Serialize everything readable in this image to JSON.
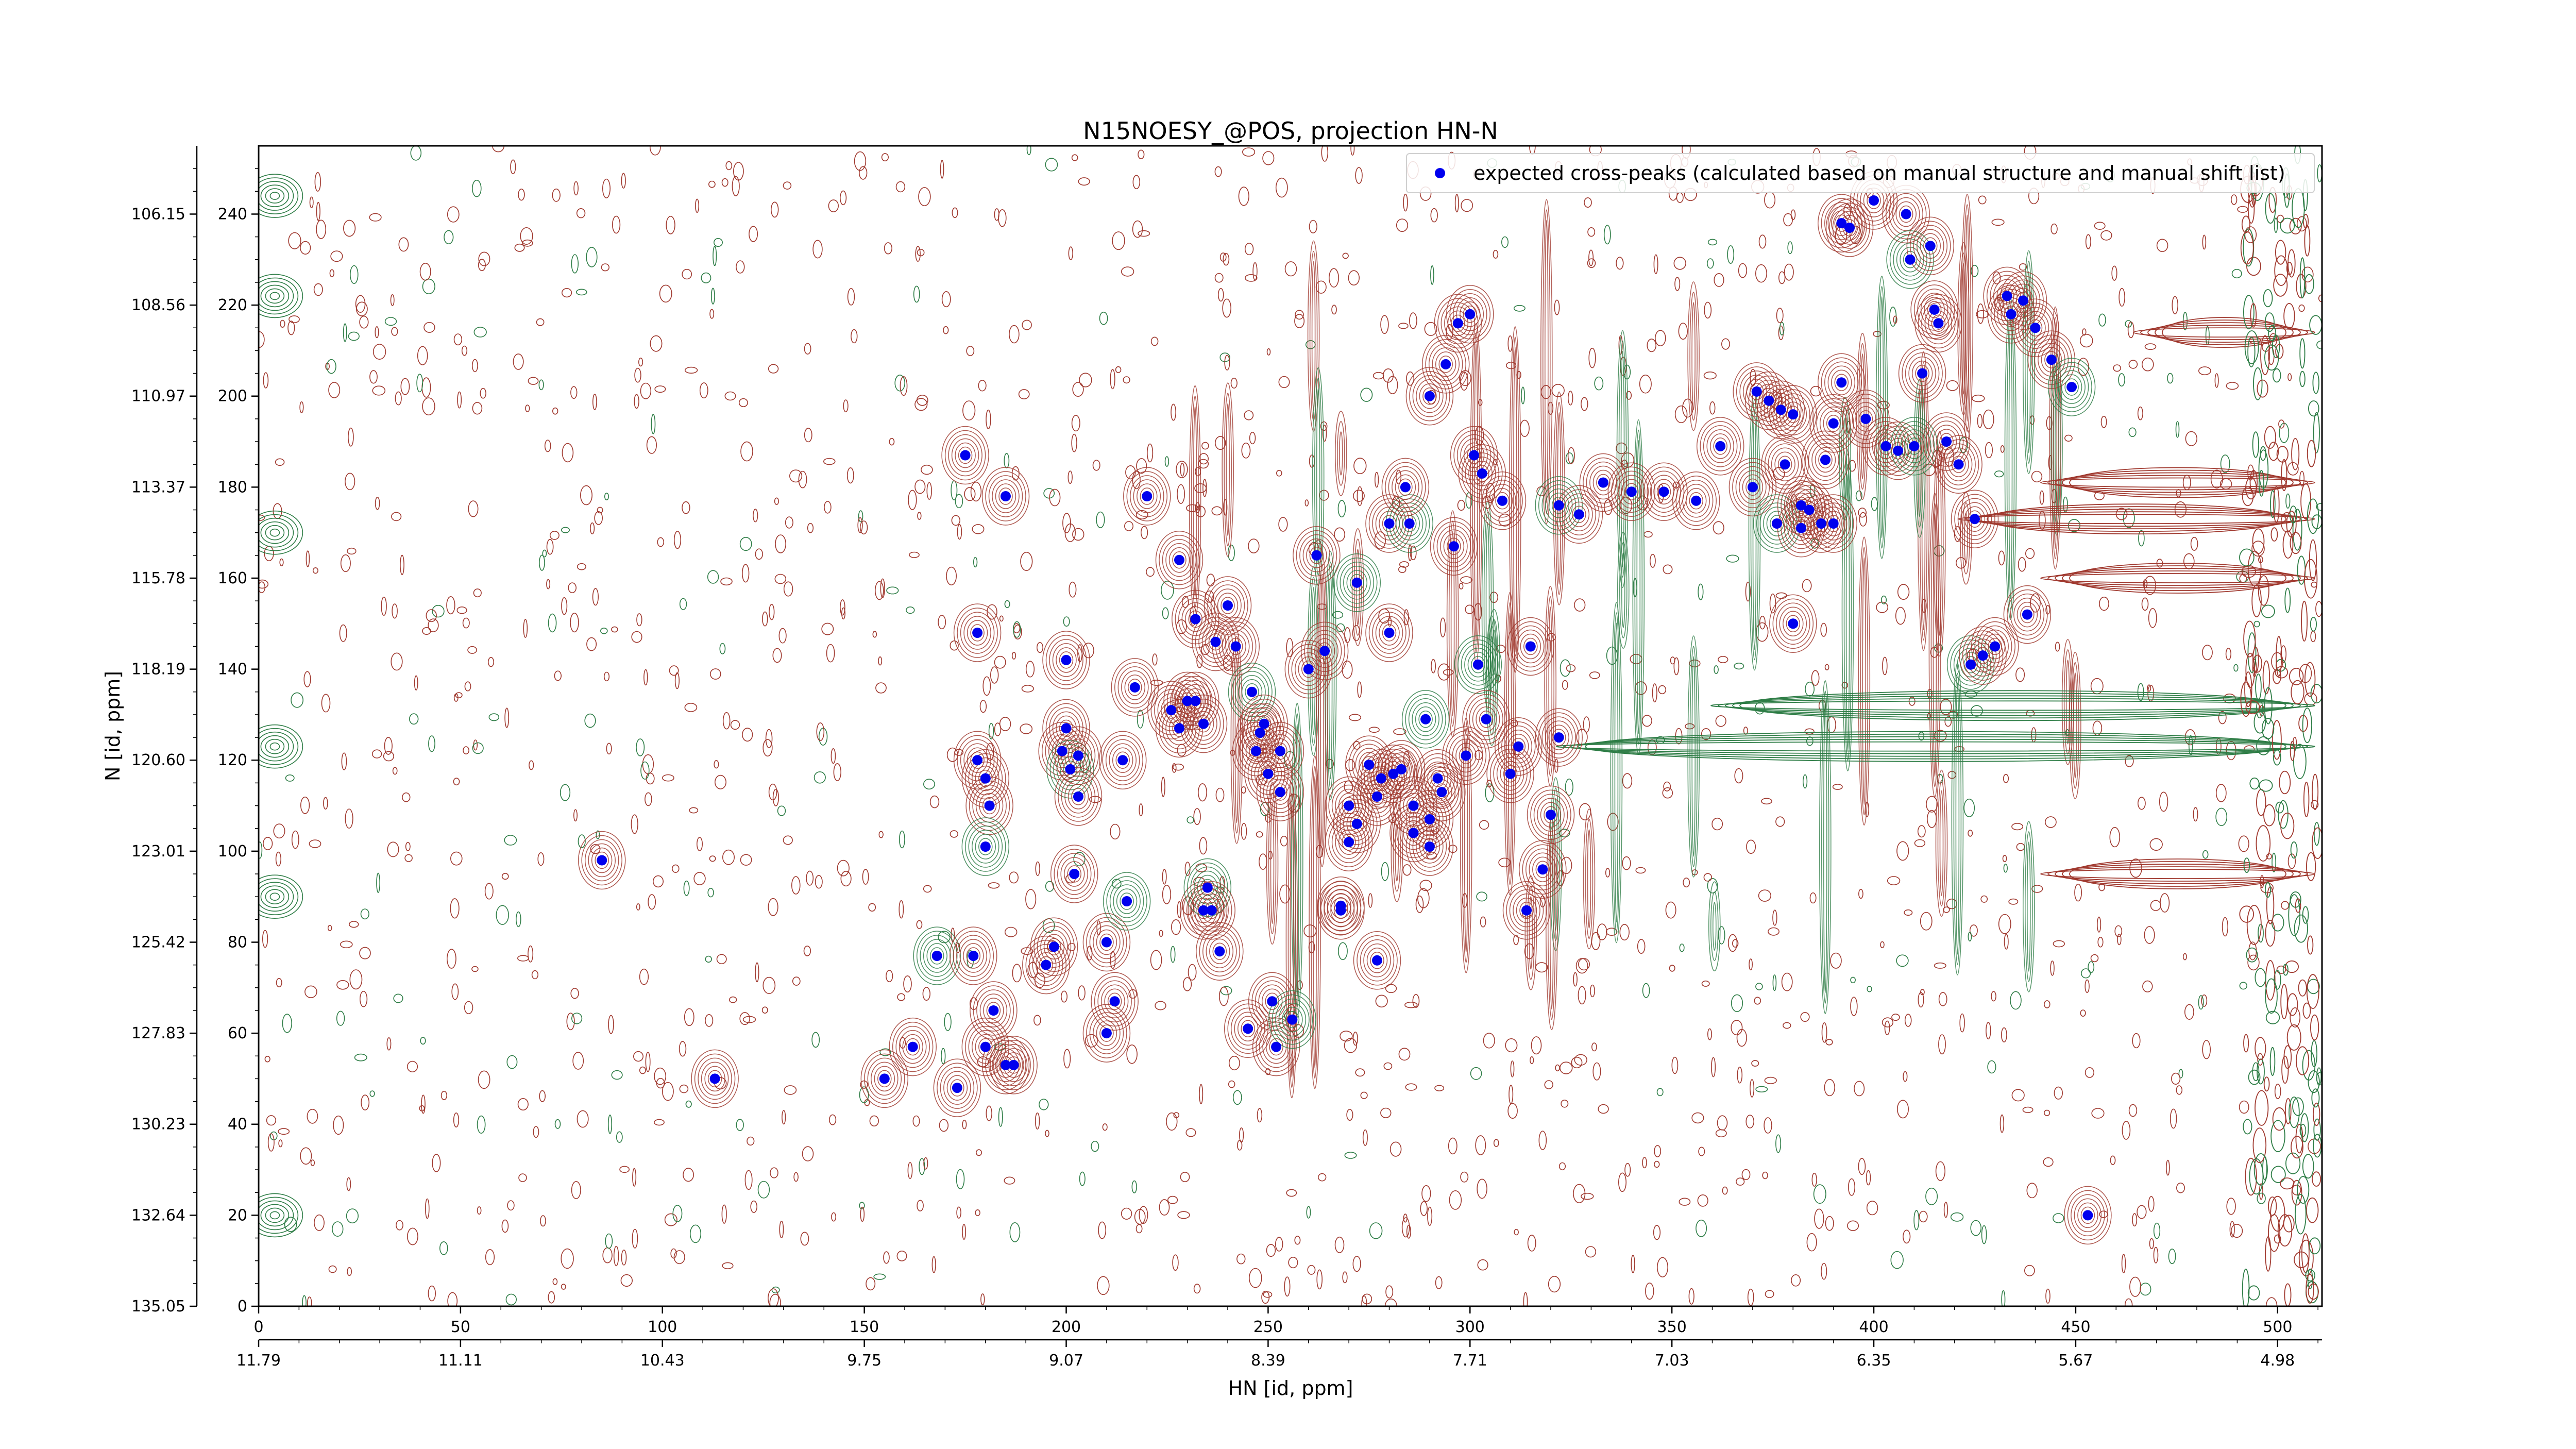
{
  "chart_data": {
    "type": "scatter",
    "title": "N15NOESY_@POS, projection HN-N",
    "xlabel": "HN [id, ppm]",
    "ylabel": "N [id, ppm]",
    "xlim": [
      0,
      511
    ],
    "ylim": [
      0,
      255
    ],
    "x_ticks_index": [
      "0",
      "50",
      "100",
      "150",
      "200",
      "250",
      "300",
      "350",
      "400",
      "450",
      "500"
    ],
    "x_ticks_ppm": [
      "11.79",
      "11.11",
      "10.43",
      "9.75",
      "9.07",
      "8.39",
      "7.71",
      "7.03",
      "6.35",
      "5.67",
      "4.98"
    ],
    "y_ticks_index": [
      "0",
      "20",
      "40",
      "60",
      "80",
      "100",
      "120",
      "140",
      "160",
      "180",
      "200",
      "220",
      "240"
    ],
    "y_ticks_ppm": [
      "135.05",
      "132.64",
      "130.23",
      "127.83",
      "125.42",
      "123.01",
      "120.60",
      "118.19",
      "115.78",
      "113.37",
      "110.97",
      "108.56",
      "106.15"
    ],
    "grid": false,
    "legend": "top-right",
    "colors": {
      "positive_contours": "#a0392f",
      "negative_contours": "#2e7d46",
      "peaks": "#0000ee"
    },
    "series": [
      {
        "name": "expected cross-peaks (calculated based on manual structure and manual shift list)",
        "points": [
          [
            85,
            98
          ],
          [
            113,
            50
          ],
          [
            155,
            50
          ],
          [
            162,
            57
          ],
          [
            168,
            77
          ],
          [
            173,
            48
          ],
          [
            177,
            77
          ],
          [
            180,
            57
          ],
          [
            182,
            65
          ],
          [
            185,
            53
          ],
          [
            178,
            120
          ],
          [
            180,
            116
          ],
          [
            181,
            110
          ],
          [
            180,
            101
          ],
          [
            175,
            187
          ],
          [
            178,
            148
          ],
          [
            185,
            178
          ],
          [
            187,
            53
          ],
          [
            195,
            75
          ],
          [
            197,
            79
          ],
          [
            199,
            122
          ],
          [
            200,
            127
          ],
          [
            201,
            118
          ],
          [
            203,
            112
          ],
          [
            200,
            142
          ],
          [
            203,
            121
          ],
          [
            202,
            95
          ],
          [
            210,
            60
          ],
          [
            210,
            80
          ],
          [
            212,
            67
          ],
          [
            214,
            120
          ],
          [
            215,
            89
          ],
          [
            217,
            136
          ],
          [
            220,
            178
          ],
          [
            226,
            131
          ],
          [
            228,
            127
          ],
          [
            230,
            133
          ],
          [
            232,
            133
          ],
          [
            234,
            128
          ],
          [
            234,
            87
          ],
          [
            235,
            92
          ],
          [
            236,
            87
          ],
          [
            238,
            78
          ],
          [
            237,
            146
          ],
          [
            228,
            164
          ],
          [
            232,
            151
          ],
          [
            240,
            154
          ],
          [
            242,
            145
          ],
          [
            245,
            61
          ],
          [
            246,
            135
          ],
          [
            247,
            122
          ],
          [
            248,
            126
          ],
          [
            249,
            128
          ],
          [
            250,
            117
          ],
          [
            253,
            122
          ],
          [
            253,
            113
          ],
          [
            251,
            67
          ],
          [
            252,
            57
          ],
          [
            256,
            63
          ],
          [
            260,
            140
          ],
          [
            262,
            165
          ],
          [
            264,
            144
          ],
          [
            268,
            87
          ],
          [
            268,
            88
          ],
          [
            270,
            110
          ],
          [
            270,
            102
          ],
          [
            272,
            106
          ],
          [
            272,
            159
          ],
          [
            275,
            119
          ],
          [
            277,
            76
          ],
          [
            277,
            112
          ],
          [
            278,
            116
          ],
          [
            280,
            148
          ],
          [
            281,
            117
          ],
          [
            283,
            118
          ],
          [
            286,
            104
          ],
          [
            289,
            129
          ],
          [
            290,
            101
          ],
          [
            292,
            116
          ],
          [
            293,
            113
          ],
          [
            296,
            167
          ],
          [
            299,
            121
          ],
          [
            301,
            187
          ],
          [
            308,
            177
          ],
          [
            280,
            172
          ],
          [
            285,
            172
          ],
          [
            284,
            180
          ],
          [
            286,
            110
          ],
          [
            290,
            107
          ],
          [
            294,
            207
          ],
          [
            290,
            200
          ],
          [
            297,
            216
          ],
          [
            300,
            218
          ],
          [
            303,
            183
          ],
          [
            302,
            141
          ],
          [
            304,
            129
          ],
          [
            312,
            123
          ],
          [
            314,
            87
          ],
          [
            318,
            96
          ],
          [
            322,
            125
          ],
          [
            310,
            117
          ],
          [
            315,
            145
          ],
          [
            320,
            108
          ],
          [
            322,
            176
          ],
          [
            327,
            174
          ],
          [
            333,
            181
          ],
          [
            340,
            179
          ],
          [
            348,
            179
          ],
          [
            356,
            177
          ],
          [
            362,
            189
          ],
          [
            370,
            180
          ],
          [
            378,
            185
          ],
          [
            376,
            172
          ],
          [
            380,
            150
          ],
          [
            382,
            171
          ],
          [
            388,
            186
          ],
          [
            390,
            194
          ],
          [
            392,
            203
          ],
          [
            398,
            195
          ],
          [
            403,
            189
          ],
          [
            406,
            188
          ],
          [
            410,
            189
          ],
          [
            412,
            205
          ],
          [
            418,
            190
          ],
          [
            421,
            185
          ],
          [
            425,
            173
          ],
          [
            392,
            238
          ],
          [
            394,
            237
          ],
          [
            400,
            243
          ],
          [
            408,
            240
          ],
          [
            409,
            230
          ],
          [
            414,
            233
          ],
          [
            415,
            219
          ],
          [
            416,
            216
          ],
          [
            433,
            222
          ],
          [
            434,
            218
          ],
          [
            437,
            221
          ],
          [
            440,
            215
          ],
          [
            444,
            208
          ],
          [
            449,
            202
          ],
          [
            371,
            201
          ],
          [
            374,
            199
          ],
          [
            377,
            197
          ],
          [
            380,
            196
          ],
          [
            382,
            176
          ],
          [
            384,
            175
          ],
          [
            387,
            172
          ],
          [
            390,
            172
          ],
          [
            424,
            141
          ],
          [
            427,
            143
          ],
          [
            430,
            145
          ],
          [
            438,
            152
          ],
          [
            453,
            20
          ]
        ]
      }
    ]
  }
}
